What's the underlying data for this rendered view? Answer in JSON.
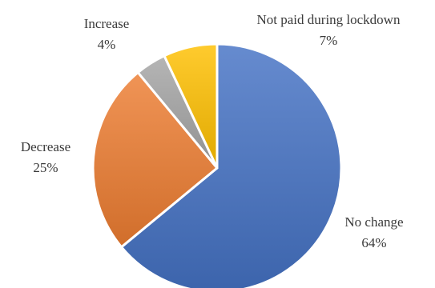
{
  "chart_data": {
    "type": "pie",
    "start_angle_deg": 0,
    "direction": "clockwise",
    "slices": [
      {
        "label": "No change",
        "value": 64,
        "value_label": "64%",
        "color": "#4472C4"
      },
      {
        "label": "Decrease",
        "value": 25,
        "value_label": "25%",
        "color": "#ED7D31"
      },
      {
        "label": "Increase",
        "value": 4,
        "value_label": "4%",
        "color": "#A5A5A5"
      },
      {
        "label": "Not paid during lockdown",
        "value": 7,
        "value_label": "7%",
        "color": "#FFC000"
      }
    ],
    "legend": "none"
  }
}
